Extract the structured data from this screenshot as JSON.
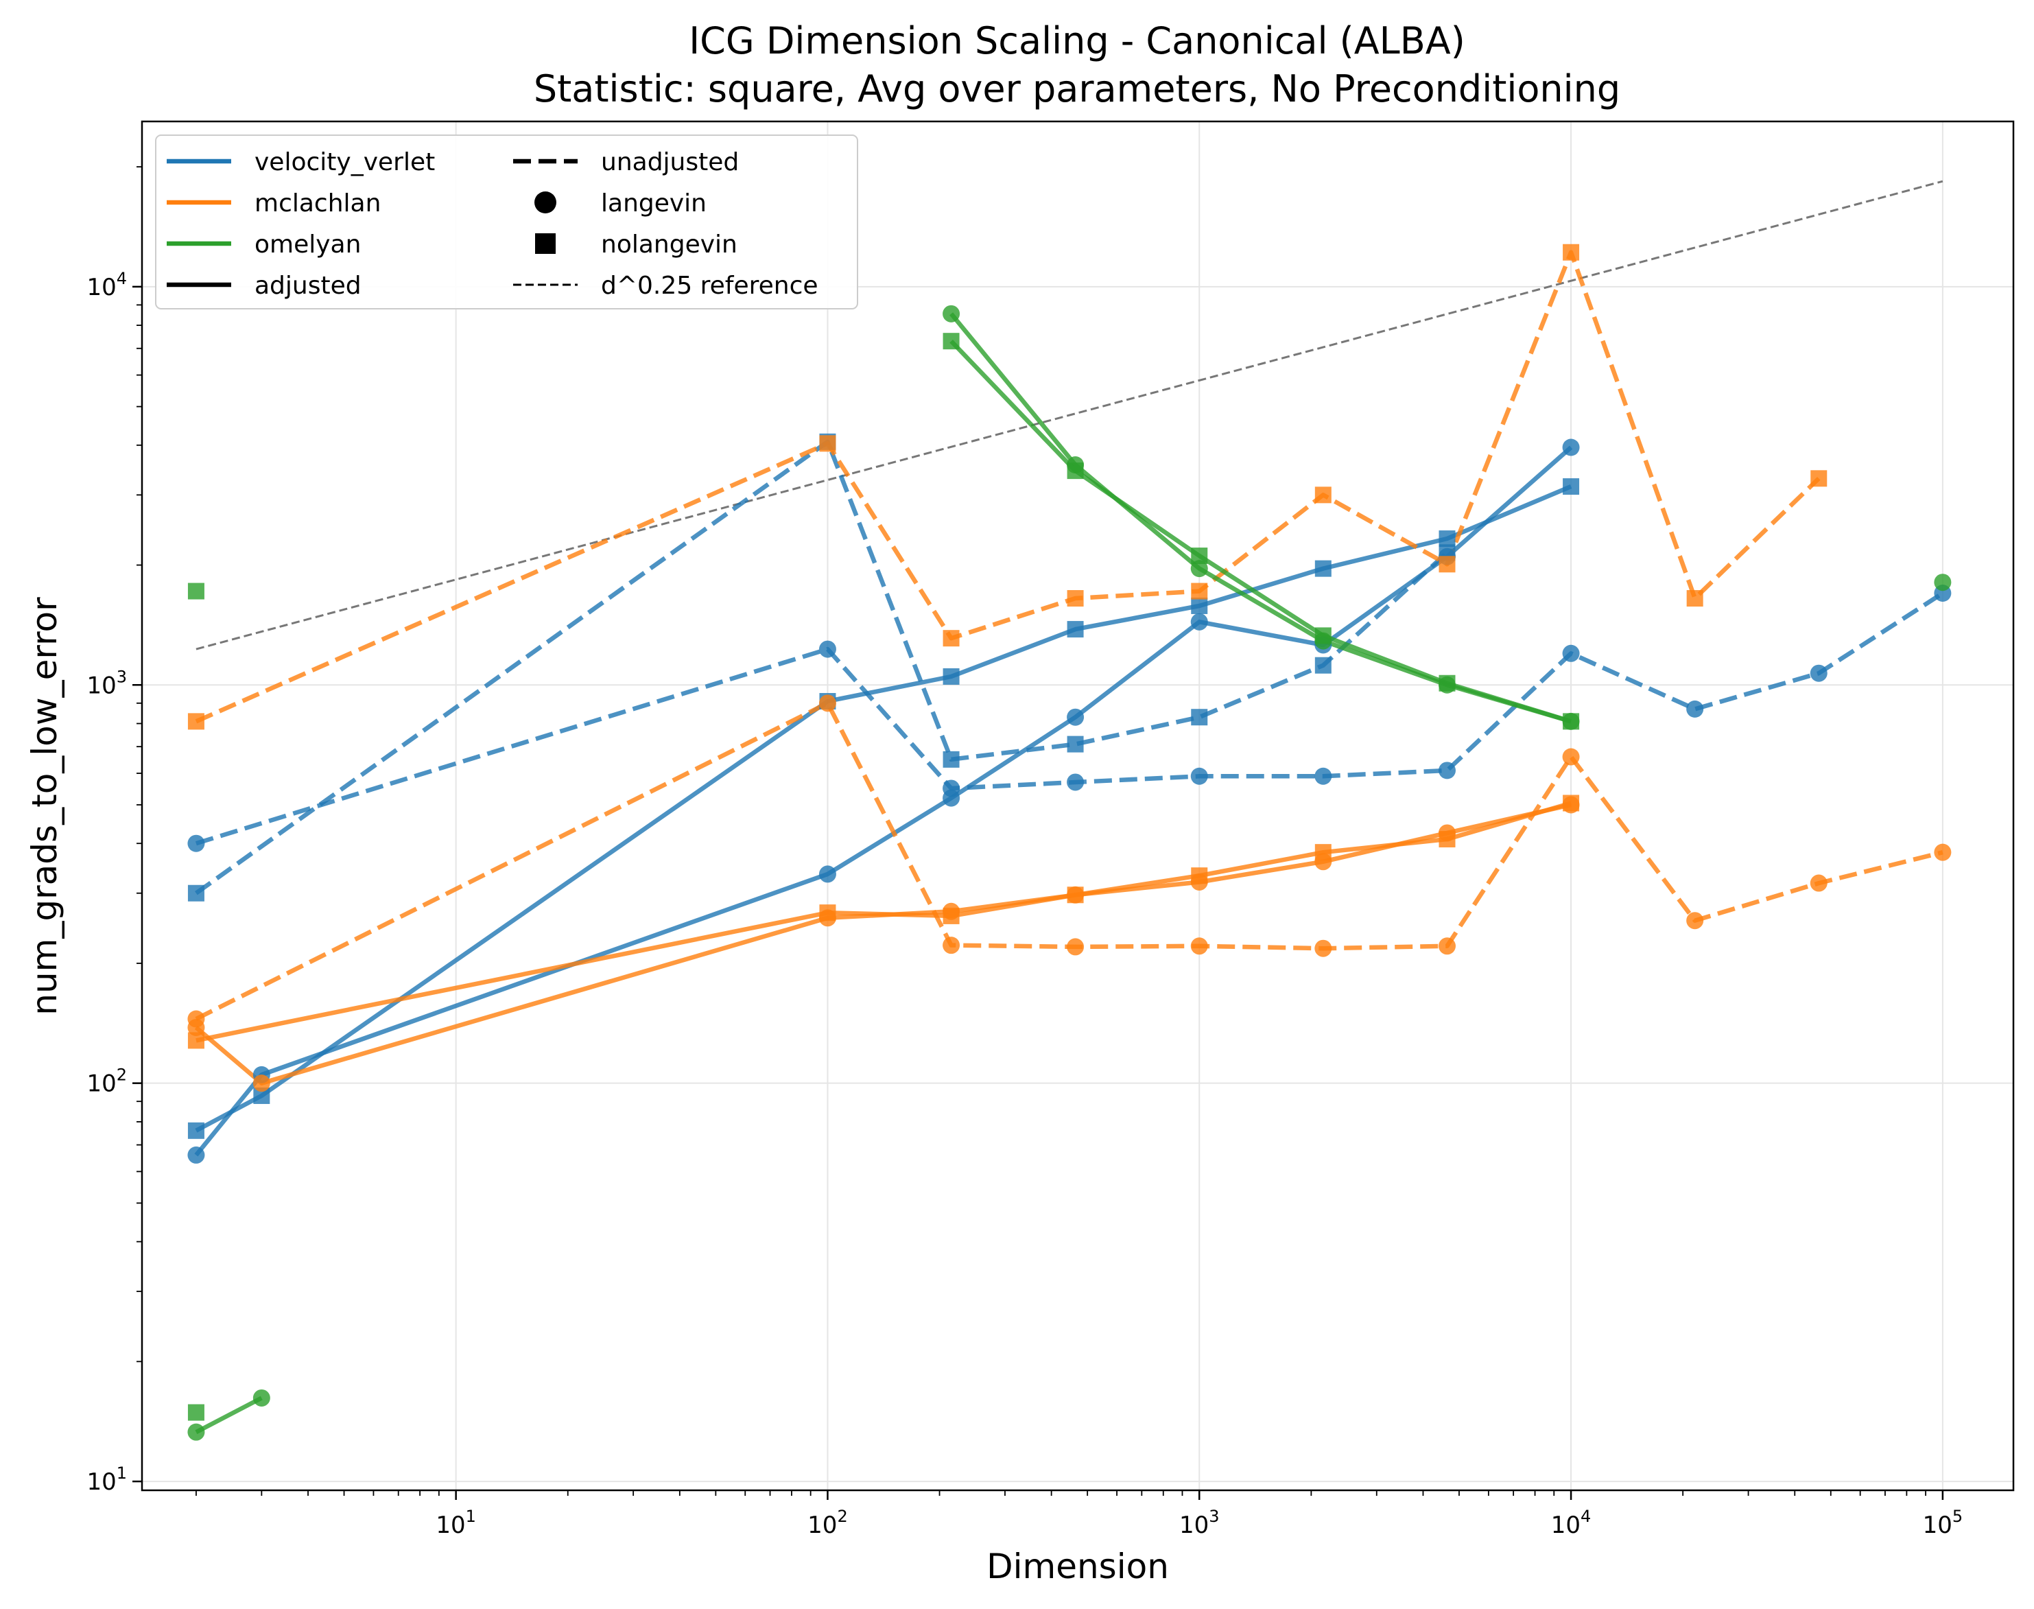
{
  "chart_data": {
    "type": "line",
    "title": "ICG Dimension Scaling - Canonical (ALBA)",
    "subtitle": "Statistic: square, Avg over parameters, No Preconditioning",
    "xlabel": "Dimension",
    "ylabel": "num_grads_to_low_error",
    "xscale": "log",
    "yscale": "log",
    "xlim": [
      1.43,
      155000
    ],
    "ylim": [
      9.5,
      26000
    ],
    "grid": true,
    "legend_position": "upper-left",
    "x_ticks": [
      {
        "base": "10",
        "exp": "1",
        "value": 10
      },
      {
        "base": "10",
        "exp": "2",
        "value": 100
      },
      {
        "base": "10",
        "exp": "3",
        "value": 1000
      },
      {
        "base": "10",
        "exp": "4",
        "value": 10000
      },
      {
        "base": "10",
        "exp": "5",
        "value": 100000
      }
    ],
    "y_ticks": [
      {
        "base": "10",
        "exp": "1",
        "value": 10
      },
      {
        "base": "10",
        "exp": "2",
        "value": 100
      },
      {
        "base": "10",
        "exp": "3",
        "value": 1000
      },
      {
        "base": "10",
        "exp": "4",
        "value": 10000
      }
    ],
    "colors": {
      "velocity_verlet": "#1f77b4",
      "mclachlan": "#ff7f0e",
      "omelyan": "#2ca02c",
      "reference": "#777777"
    },
    "legend": {
      "col1": [
        {
          "label": "velocity_verlet",
          "kind": "line",
          "color": "#1f77b4"
        },
        {
          "label": "mclachlan",
          "kind": "line",
          "color": "#ff7f0e"
        },
        {
          "label": "omelyan",
          "kind": "line",
          "color": "#2ca02c"
        },
        {
          "label": "adjusted",
          "kind": "solid",
          "color": "#000000"
        }
      ],
      "col2": [
        {
          "label": "unadjusted",
          "kind": "dashed",
          "color": "#000000"
        },
        {
          "label": "langevin",
          "kind": "circle",
          "color": "#000000"
        },
        {
          "label": "nolangevin",
          "kind": "square",
          "color": "#000000"
        },
        {
          "label": "d^0.25 reference",
          "kind": "thin-dashed",
          "color": "#000000"
        }
      ]
    },
    "reference": {
      "x": [
        2,
        100000
      ],
      "y": [
        1230,
        18400
      ]
    },
    "series": [
      {
        "integrator": "velocity_verlet",
        "adjusted": true,
        "langevin": true,
        "x": [
          2,
          3,
          100,
          215,
          464,
          1000,
          2154,
          4642,
          10000
        ],
        "y": [
          66,
          105,
          335,
          520,
          830,
          1440,
          1260,
          2100,
          3950
        ]
      },
      {
        "integrator": "velocity_verlet",
        "adjusted": true,
        "langevin": false,
        "x": [
          2,
          3,
          100,
          215,
          464,
          1000,
          2154,
          4642,
          10000
        ],
        "y": [
          76,
          93,
          910,
          1050,
          1380,
          1580,
          1960,
          2330,
          3150
        ]
      },
      {
        "integrator": "velocity_verlet",
        "adjusted": false,
        "langevin": true,
        "x": [
          2,
          100,
          215,
          464,
          1000,
          2154,
          4642,
          10000,
          21544,
          46416,
          100000
        ],
        "y": [
          400,
          1230,
          550,
          570,
          590,
          590,
          610,
          1200,
          870,
          1070,
          1700
        ]
      },
      {
        "integrator": "velocity_verlet",
        "adjusted": false,
        "langevin": false,
        "x": [
          2,
          100,
          215,
          464,
          1000,
          2154,
          4642
        ],
        "y": [
          300,
          4080,
          650,
          710,
          830,
          1120,
          2150
        ]
      },
      {
        "integrator": "mclachlan",
        "adjusted": true,
        "langevin": true,
        "x": [
          2,
          3,
          100,
          215,
          464,
          1000,
          2154,
          4642,
          10000
        ],
        "y": [
          138,
          100,
          260,
          270,
          297,
          320,
          360,
          425,
          500
        ]
      },
      {
        "integrator": "mclachlan",
        "adjusted": true,
        "langevin": false,
        "x": [
          2,
          100,
          215,
          464,
          1000,
          2154,
          4642,
          10000
        ],
        "y": [
          128,
          268,
          263,
          297,
          332,
          380,
          410,
          505
        ]
      },
      {
        "integrator": "mclachlan",
        "adjusted": false,
        "langevin": true,
        "x": [
          2,
          100,
          215,
          464,
          1000,
          2154,
          4642,
          10000,
          21544,
          46416,
          100000
        ],
        "y": [
          145,
          900,
          222,
          220,
          221,
          218,
          221,
          660,
          256,
          318,
          380
        ]
      },
      {
        "integrator": "mclachlan",
        "adjusted": false,
        "langevin": false,
        "x": [
          2,
          100,
          215,
          464,
          1000,
          2154,
          4642,
          10000,
          21544,
          46416
        ],
        "y": [
          810,
          4040,
          1310,
          1650,
          1720,
          3000,
          2010,
          12200,
          1650,
          3300
        ]
      },
      {
        "integrator": "omelyan",
        "adjusted": true,
        "langevin": true,
        "x": [
          2,
          3,
          215,
          464,
          1000,
          2154,
          4642,
          10000,
          100000
        ],
        "y": [
          13.3,
          16.2,
          8550,
          3570,
          1960,
          1290,
          1000,
          810,
          1810
        ],
        "segments": [
          [
            0,
            1
          ],
          [
            2,
            7
          ]
        ]
      },
      {
        "integrator": "omelyan",
        "adjusted": true,
        "langevin": false,
        "x": [
          2,
          2,
          215,
          464,
          1000,
          2154,
          4642,
          10000
        ],
        "y": [
          1720,
          14.9,
          7300,
          3450,
          2110,
          1330,
          1010,
          810
        ],
        "segments": [
          [
            2,
            7
          ]
        ]
      }
    ]
  }
}
